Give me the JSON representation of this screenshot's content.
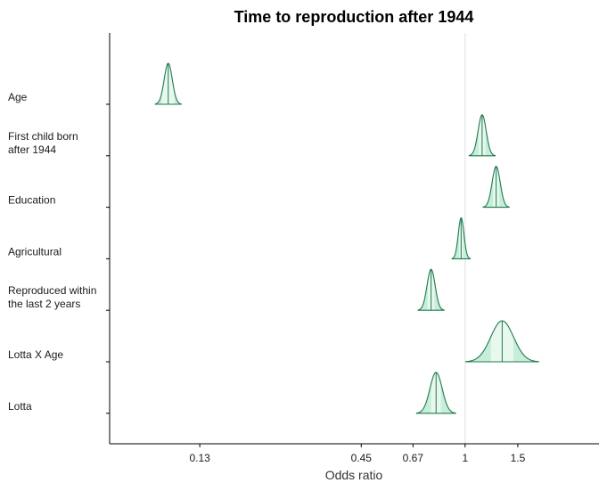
{
  "chart_data": {
    "type": "density-ridge",
    "title": "Time to reproduction after 1944",
    "xlabel": "Odds ratio",
    "ylabel": "",
    "x_scale": "log",
    "xlim": [
      0.065,
      2.8
    ],
    "x_ticks": [
      {
        "value": 0.13,
        "label": "0.13"
      },
      {
        "value": 0.45,
        "label": "0.45"
      },
      {
        "value": 0.67,
        "label": "0.67"
      },
      {
        "value": 1,
        "label": "1"
      },
      {
        "value": 1.5,
        "label": "1.5"
      }
    ],
    "reference_line": 1,
    "grid": false,
    "colors": {
      "fill": "#c7eed9",
      "outline": "#1f7a4d",
      "inner": "#e8f8ef",
      "refline": "#e0e0e0"
    },
    "rows": [
      {
        "label": "Age",
        "label_lines": [
          "Age"
        ],
        "center": 0.102,
        "spread": 0.1,
        "lower": 0.097,
        "upper": 0.107
      },
      {
        "label": "First child born after 1944",
        "label_lines": [
          "First child born",
          "after 1944"
        ],
        "center": 1.14,
        "spread": 0.1,
        "lower": 1.11,
        "upper": 1.17
      },
      {
        "label": "Education",
        "label_lines": [
          "Education"
        ],
        "center": 1.27,
        "spread": 0.1,
        "lower": 1.24,
        "upper": 1.3
      },
      {
        "label": "Agricultural",
        "label_lines": [
          "Agricultural"
        ],
        "center": 0.97,
        "spread": 0.07,
        "lower": 0.955,
        "upper": 0.985
      },
      {
        "label": "Reproduced within the last 2 years",
        "label_lines": [
          "Reproduced within",
          "the last 2 years"
        ],
        "center": 0.77,
        "spread": 0.1,
        "lower": 0.75,
        "upper": 0.79
      },
      {
        "label": "Lotta X Age",
        "label_lines": [
          "Lotta X Age"
        ],
        "center": 1.33,
        "spread": 0.28,
        "lower": 1.22,
        "upper": 1.45
      },
      {
        "label": "Lotta",
        "label_lines": [
          "Lotta"
        ],
        "center": 0.8,
        "spread": 0.15,
        "lower": 0.77,
        "upper": 0.83
      }
    ]
  }
}
